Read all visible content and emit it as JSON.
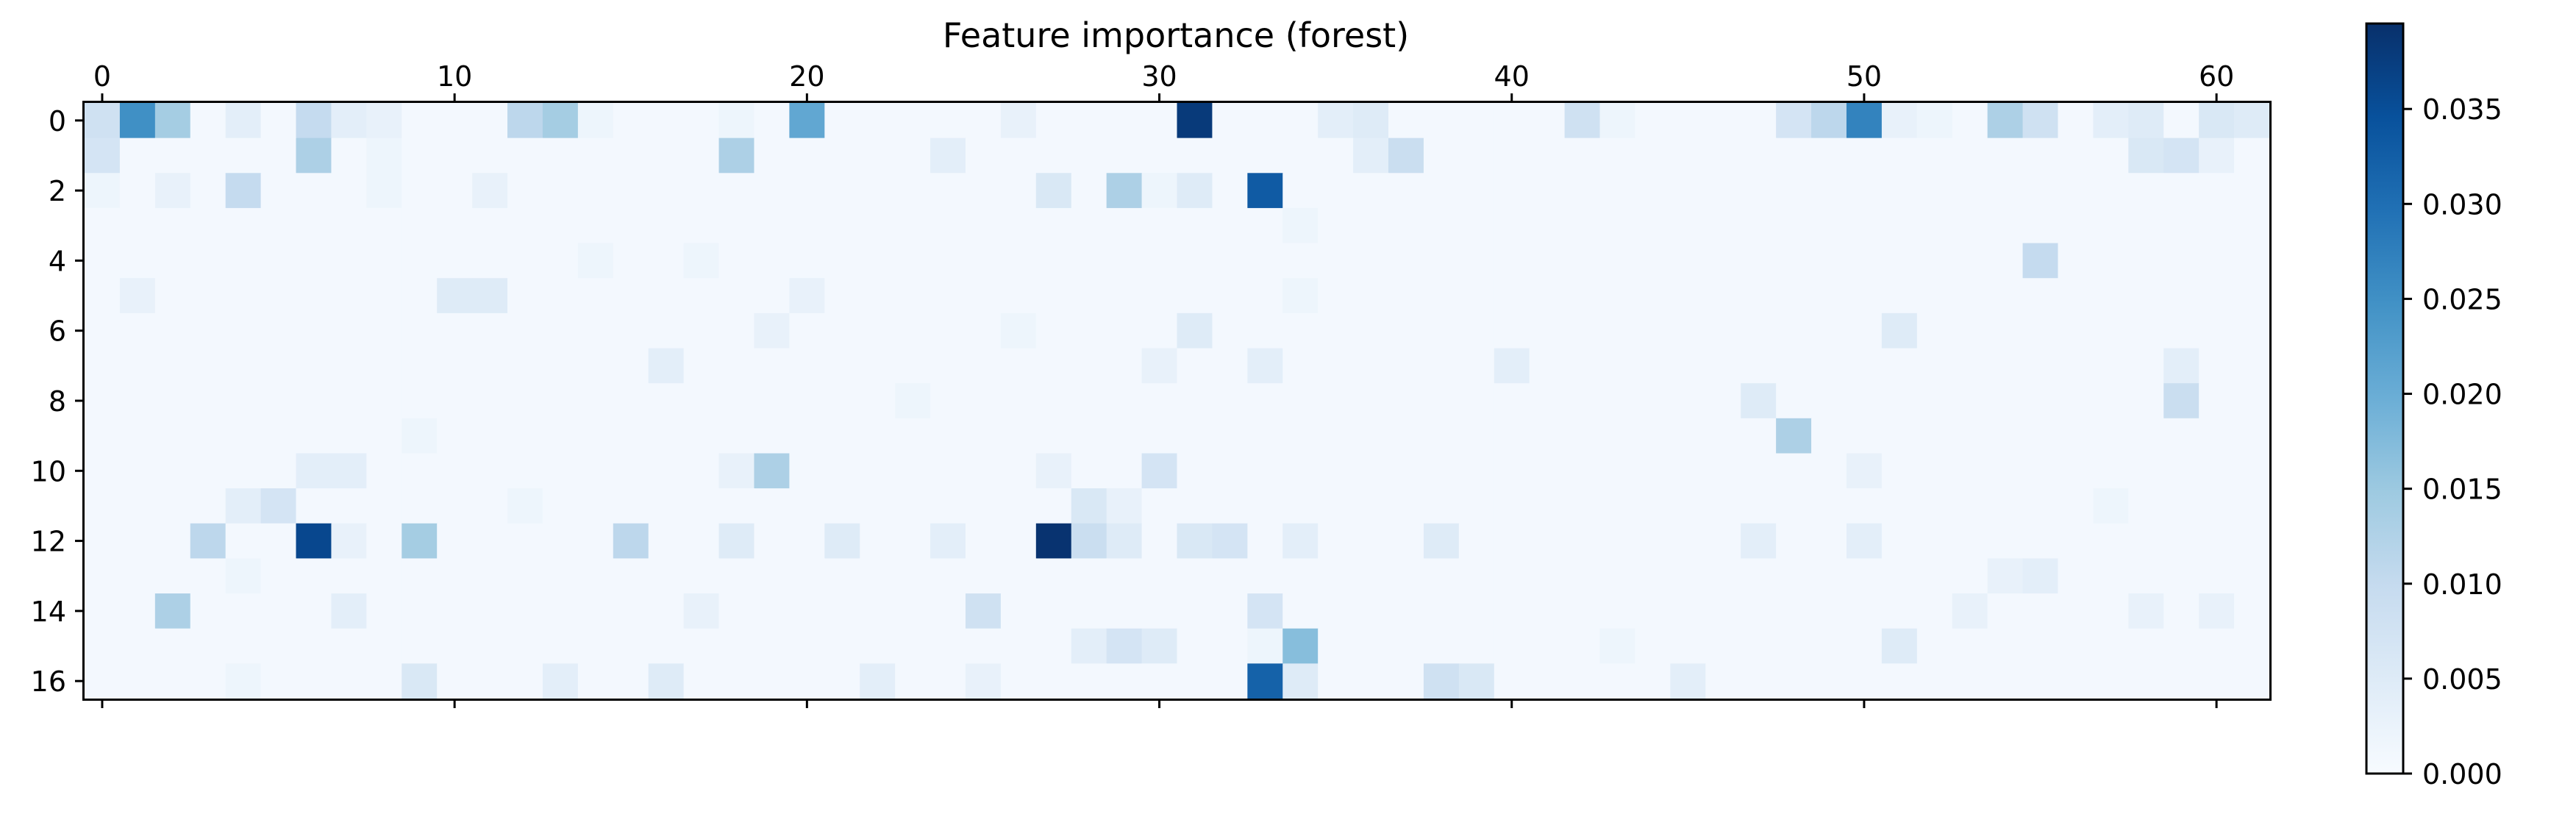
{
  "chart_data": {
    "type": "heatmap",
    "title": "Feature importance (forest)",
    "xlabel": "",
    "ylabel": "",
    "n_cols": 62,
    "n_rows": 17,
    "x_ticks": [
      0,
      10,
      20,
      30,
      40,
      50,
      60
    ],
    "x_tick_labels": [
      "0",
      "10",
      "20",
      "30",
      "40",
      "50",
      "60"
    ],
    "x_tick_position": "top-and-bottom",
    "y_ticks": [
      0,
      2,
      4,
      6,
      8,
      10,
      12,
      14,
      16
    ],
    "y_tick_labels": [
      "0",
      "2",
      "4",
      "6",
      "8",
      "10",
      "12",
      "14",
      "16"
    ],
    "colormap": "Blues",
    "colormap_stops": [
      "#f7fbff",
      "#deebf7",
      "#c6dbef",
      "#9ecae1",
      "#6baed6",
      "#4292c6",
      "#2171b5",
      "#08519c",
      "#08306b"
    ],
    "vmin": 0.0,
    "vmax": 0.0395,
    "colorbar": {
      "position": "right",
      "ticks": [
        0.0,
        0.005,
        0.01,
        0.015,
        0.02,
        0.025,
        0.03,
        0.035
      ],
      "tick_labels": [
        "0.000",
        "0.005",
        "0.010",
        "0.015",
        "0.020",
        "0.025",
        "0.030",
        "0.035"
      ]
    },
    "background_value": 0.0008,
    "cells": [
      [
        0,
        0,
        0.008
      ],
      [
        1,
        0,
        0.025
      ],
      [
        2,
        0,
        0.014
      ],
      [
        4,
        0,
        0.004
      ],
      [
        6,
        0,
        0.01
      ],
      [
        7,
        0,
        0.004
      ],
      [
        8,
        0,
        0.003
      ],
      [
        12,
        0,
        0.011
      ],
      [
        13,
        0,
        0.014
      ],
      [
        14,
        0,
        0.002
      ],
      [
        18,
        0,
        0.002
      ],
      [
        20,
        0,
        0.021
      ],
      [
        26,
        0,
        0.003
      ],
      [
        31,
        0,
        0.038
      ],
      [
        35,
        0,
        0.004
      ],
      [
        36,
        0,
        0.005
      ],
      [
        42,
        0,
        0.008
      ],
      [
        43,
        0,
        0.002
      ],
      [
        48,
        0,
        0.007
      ],
      [
        49,
        0,
        0.011
      ],
      [
        50,
        0,
        0.027
      ],
      [
        51,
        0,
        0.003
      ],
      [
        52,
        0,
        0.002
      ],
      [
        54,
        0,
        0.013
      ],
      [
        55,
        0,
        0.008
      ],
      [
        57,
        0,
        0.004
      ],
      [
        58,
        0,
        0.005
      ],
      [
        60,
        0,
        0.006
      ],
      [
        61,
        0,
        0.005
      ],
      [
        0,
        1,
        0.007
      ],
      [
        6,
        1,
        0.013
      ],
      [
        8,
        1,
        0.002
      ],
      [
        18,
        1,
        0.013
      ],
      [
        24,
        1,
        0.004
      ],
      [
        36,
        1,
        0.004
      ],
      [
        37,
        1,
        0.009
      ],
      [
        58,
        1,
        0.006
      ],
      [
        59,
        1,
        0.007
      ],
      [
        60,
        1,
        0.003
      ],
      [
        0,
        2,
        0.002
      ],
      [
        2,
        2,
        0.003
      ],
      [
        4,
        2,
        0.01
      ],
      [
        8,
        2,
        0.002
      ],
      [
        11,
        2,
        0.003
      ],
      [
        27,
        2,
        0.006
      ],
      [
        29,
        2,
        0.013
      ],
      [
        30,
        2,
        0.002
      ],
      [
        31,
        2,
        0.005
      ],
      [
        33,
        2,
        0.033
      ],
      [
        34,
        3,
        0.002
      ],
      [
        14,
        4,
        0.002
      ],
      [
        17,
        4,
        0.002
      ],
      [
        55,
        4,
        0.01
      ],
      [
        1,
        5,
        0.003
      ],
      [
        10,
        5,
        0.005
      ],
      [
        11,
        5,
        0.005
      ],
      [
        20,
        5,
        0.003
      ],
      [
        34,
        5,
        0.002
      ],
      [
        19,
        6,
        0.003
      ],
      [
        26,
        6,
        0.002
      ],
      [
        31,
        6,
        0.005
      ],
      [
        51,
        6,
        0.005
      ],
      [
        16,
        7,
        0.004
      ],
      [
        30,
        7,
        0.003
      ],
      [
        33,
        7,
        0.004
      ],
      [
        40,
        7,
        0.004
      ],
      [
        59,
        7,
        0.004
      ],
      [
        23,
        8,
        0.002
      ],
      [
        47,
        8,
        0.005
      ],
      [
        59,
        8,
        0.009
      ],
      [
        9,
        9,
        0.002
      ],
      [
        48,
        9,
        0.013
      ],
      [
        6,
        10,
        0.004
      ],
      [
        7,
        10,
        0.004
      ],
      [
        18,
        10,
        0.003
      ],
      [
        19,
        10,
        0.013
      ],
      [
        27,
        10,
        0.003
      ],
      [
        30,
        10,
        0.007
      ],
      [
        50,
        10,
        0.003
      ],
      [
        4,
        11,
        0.004
      ],
      [
        5,
        11,
        0.007
      ],
      [
        12,
        11,
        0.002
      ],
      [
        28,
        11,
        0.006
      ],
      [
        29,
        11,
        0.003
      ],
      [
        57,
        11,
        0.002
      ],
      [
        3,
        12,
        0.011
      ],
      [
        6,
        12,
        0.036
      ],
      [
        7,
        12,
        0.003
      ],
      [
        9,
        12,
        0.014
      ],
      [
        15,
        12,
        0.011
      ],
      [
        18,
        12,
        0.005
      ],
      [
        21,
        12,
        0.005
      ],
      [
        24,
        12,
        0.004
      ],
      [
        27,
        12,
        0.039
      ],
      [
        28,
        12,
        0.009
      ],
      [
        29,
        12,
        0.005
      ],
      [
        31,
        12,
        0.006
      ],
      [
        32,
        12,
        0.007
      ],
      [
        34,
        12,
        0.004
      ],
      [
        38,
        12,
        0.005
      ],
      [
        47,
        12,
        0.004
      ],
      [
        50,
        12,
        0.004
      ],
      [
        4,
        13,
        0.002
      ],
      [
        54,
        13,
        0.003
      ],
      [
        55,
        13,
        0.004
      ],
      [
        2,
        14,
        0.013
      ],
      [
        7,
        14,
        0.004
      ],
      [
        17,
        14,
        0.003
      ],
      [
        25,
        14,
        0.008
      ],
      [
        33,
        14,
        0.007
      ],
      [
        53,
        14,
        0.003
      ],
      [
        58,
        14,
        0.003
      ],
      [
        60,
        14,
        0.003
      ],
      [
        28,
        15,
        0.004
      ],
      [
        29,
        15,
        0.007
      ],
      [
        30,
        15,
        0.005
      ],
      [
        33,
        15,
        0.002
      ],
      [
        34,
        15,
        0.017
      ],
      [
        43,
        15,
        0.002
      ],
      [
        51,
        15,
        0.005
      ],
      [
        4,
        16,
        0.002
      ],
      [
        9,
        16,
        0.006
      ],
      [
        13,
        16,
        0.004
      ],
      [
        16,
        16,
        0.005
      ],
      [
        22,
        16,
        0.004
      ],
      [
        25,
        16,
        0.003
      ],
      [
        33,
        16,
        0.032
      ],
      [
        34,
        16,
        0.005
      ],
      [
        38,
        16,
        0.008
      ],
      [
        39,
        16,
        0.006
      ],
      [
        45,
        16,
        0.004
      ]
    ]
  }
}
